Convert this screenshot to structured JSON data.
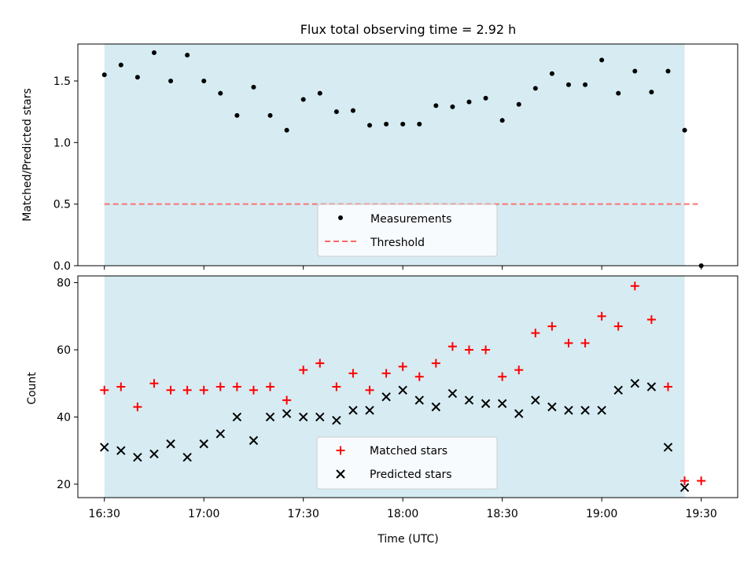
{
  "figure": {
    "title": "Flux total observing time = 2.92 h",
    "xlabel": "Time (UTC)"
  },
  "colors": {
    "shade": "#add8e6",
    "threshold": "#ff6666",
    "matched": "#ff0000",
    "predicted": "#000000",
    "measure": "#000000"
  },
  "chart_data": [
    {
      "type": "scatter",
      "panel": "top",
      "ylabel": "Matched/Predicted stars",
      "ylim": [
        0,
        1.8
      ],
      "yticks": [
        "0.0",
        "0.5",
        "1.0",
        "1.5"
      ],
      "x_range": [
        "16:22",
        "19:41"
      ],
      "shaded_interval": [
        "16:30",
        "19:25"
      ],
      "legend": {
        "position": "lower-center",
        "entries": [
          "Measurements",
          "Threshold"
        ]
      },
      "threshold": {
        "name": "Threshold",
        "y": 0.5,
        "x": [
          "16:30",
          "19:29"
        ],
        "style": "dashed"
      },
      "series": [
        {
          "name": "Measurements",
          "marker": "dot",
          "points": [
            [
              "16:30",
              1.55
            ],
            [
              "16:35",
              1.63
            ],
            [
              "16:40",
              1.53
            ],
            [
              "16:45",
              1.73
            ],
            [
              "16:50",
              1.5
            ],
            [
              "16:55",
              1.71
            ],
            [
              "17:00",
              1.5
            ],
            [
              "17:05",
              1.4
            ],
            [
              "17:10",
              1.22
            ],
            [
              "17:15",
              1.45
            ],
            [
              "17:20",
              1.22
            ],
            [
              "17:25",
              1.1
            ],
            [
              "17:30",
              1.35
            ],
            [
              "17:35",
              1.4
            ],
            [
              "17:40",
              1.25
            ],
            [
              "17:45",
              1.26
            ],
            [
              "17:50",
              1.14
            ],
            [
              "17:55",
              1.15
            ],
            [
              "18:00",
              1.15
            ],
            [
              "18:05",
              1.15
            ],
            [
              "18:10",
              1.3
            ],
            [
              "18:15",
              1.29
            ],
            [
              "18:20",
              1.33
            ],
            [
              "18:25",
              1.36
            ],
            [
              "18:30",
              1.18
            ],
            [
              "18:35",
              1.31
            ],
            [
              "18:40",
              1.44
            ],
            [
              "18:45",
              1.56
            ],
            [
              "18:50",
              1.47
            ],
            [
              "18:55",
              1.47
            ],
            [
              "19:00",
              1.67
            ],
            [
              "19:05",
              1.4
            ],
            [
              "19:10",
              1.58
            ],
            [
              "19:15",
              1.41
            ],
            [
              "19:20",
              1.58
            ],
            [
              "19:25",
              1.1
            ],
            [
              "19:30",
              0.0
            ]
          ]
        }
      ]
    },
    {
      "type": "scatter",
      "panel": "bottom",
      "ylabel": "Count",
      "ylim": [
        16,
        82
      ],
      "yticks": [
        "20",
        "40",
        "60",
        "80"
      ],
      "x_range": [
        "16:22",
        "19:41"
      ],
      "xticks": [
        "16:30",
        "17:00",
        "17:30",
        "18:00",
        "18:30",
        "19:00",
        "19:30"
      ],
      "shaded_interval": [
        "16:30",
        "19:25"
      ],
      "legend": {
        "position": "lower-center",
        "entries": [
          "Matched stars",
          "Predicted stars"
        ]
      },
      "series": [
        {
          "name": "Matched stars",
          "marker": "plus",
          "points": [
            [
              "16:30",
              48
            ],
            [
              "16:35",
              49
            ],
            [
              "16:40",
              43
            ],
            [
              "16:45",
              50
            ],
            [
              "16:50",
              48
            ],
            [
              "16:55",
              48
            ],
            [
              "17:00",
              48
            ],
            [
              "17:05",
              49
            ],
            [
              "17:10",
              49
            ],
            [
              "17:15",
              48
            ],
            [
              "17:20",
              49
            ],
            [
              "17:25",
              45
            ],
            [
              "17:30",
              54
            ],
            [
              "17:35",
              56
            ],
            [
              "17:40",
              49
            ],
            [
              "17:45",
              53
            ],
            [
              "17:50",
              48
            ],
            [
              "17:55",
              53
            ],
            [
              "18:00",
              55
            ],
            [
              "18:05",
              52
            ],
            [
              "18:10",
              56
            ],
            [
              "18:15",
              61
            ],
            [
              "18:20",
              60
            ],
            [
              "18:25",
              60
            ],
            [
              "18:30",
              52
            ],
            [
              "18:35",
              54
            ],
            [
              "18:40",
              65
            ],
            [
              "18:45",
              67
            ],
            [
              "18:50",
              62
            ],
            [
              "18:55",
              62
            ],
            [
              "19:00",
              70
            ],
            [
              "19:05",
              67
            ],
            [
              "19:10",
              79
            ],
            [
              "19:15",
              69
            ],
            [
              "19:20",
              49
            ],
            [
              "19:25",
              21
            ],
            [
              "19:30",
              21
            ]
          ]
        },
        {
          "name": "Predicted stars",
          "marker": "x",
          "points": [
            [
              "16:30",
              31
            ],
            [
              "16:35",
              30
            ],
            [
              "16:40",
              28
            ],
            [
              "16:45",
              29
            ],
            [
              "16:50",
              32
            ],
            [
              "16:55",
              28
            ],
            [
              "17:00",
              32
            ],
            [
              "17:05",
              35
            ],
            [
              "17:10",
              40
            ],
            [
              "17:15",
              33
            ],
            [
              "17:20",
              40
            ],
            [
              "17:25",
              41
            ],
            [
              "17:30",
              40
            ],
            [
              "17:35",
              40
            ],
            [
              "17:40",
              39
            ],
            [
              "17:45",
              42
            ],
            [
              "17:50",
              42
            ],
            [
              "17:55",
              46
            ],
            [
              "18:00",
              48
            ],
            [
              "18:05",
              45
            ],
            [
              "18:10",
              43
            ],
            [
              "18:15",
              47
            ],
            [
              "18:20",
              45
            ],
            [
              "18:25",
              44
            ],
            [
              "18:30",
              44
            ],
            [
              "18:35",
              41
            ],
            [
              "18:40",
              45
            ],
            [
              "18:45",
              43
            ],
            [
              "18:50",
              42
            ],
            [
              "18:55",
              42
            ],
            [
              "19:00",
              42
            ],
            [
              "19:05",
              48
            ],
            [
              "19:10",
              50
            ],
            [
              "19:15",
              49
            ],
            [
              "19:20",
              31
            ],
            [
              "19:25",
              19
            ]
          ]
        }
      ]
    }
  ]
}
